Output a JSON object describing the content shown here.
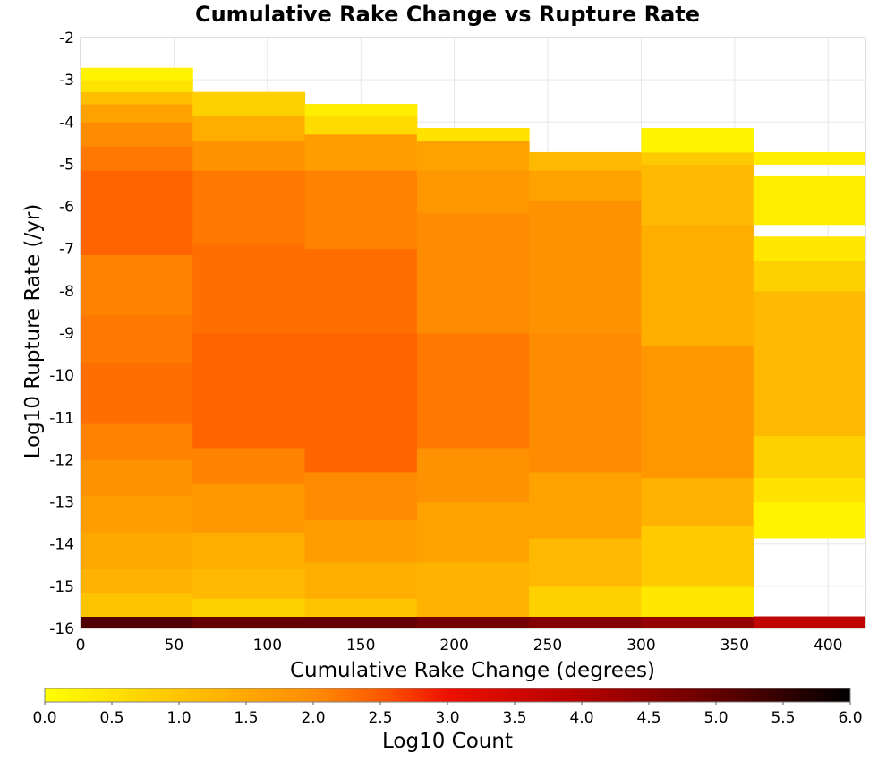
{
  "chart_data": {
    "type": "heatmap",
    "title": "Cumulative Rake Change vs Rupture Rate",
    "xlabel": "Cumulative Rake Change (degrees)",
    "ylabel": "Log10 Rupture Rate (/yr)",
    "xlim": [
      0,
      420
    ],
    "ylim": [
      -16,
      -2
    ],
    "xticks": [
      0,
      50,
      100,
      150,
      200,
      250,
      300,
      350,
      400
    ],
    "yticks": [
      -2,
      -3,
      -4,
      -5,
      -6,
      -7,
      -8,
      -9,
      -10,
      -11,
      -12,
      -13,
      -14,
      -15,
      -16
    ],
    "x_bins": [
      0,
      60,
      120,
      180,
      240,
      300,
      360,
      420
    ],
    "y_bin_width": 0.286,
    "grid": true,
    "colorbar": {
      "label": "Log10 Count",
      "min": 0.0,
      "max": 6.0,
      "ticks": [
        "0.0",
        "0.5",
        "1.0",
        "1.5",
        "2.0",
        "2.5",
        "3.0",
        "3.5",
        "4.0",
        "4.5",
        "5.0",
        "5.5",
        "6.0"
      ],
      "stops": [
        {
          "v": 0.0,
          "color": "#ffff00"
        },
        {
          "v": 1.0,
          "color": "#ffc400"
        },
        {
          "v": 2.0,
          "color": "#ff8c00"
        },
        {
          "v": 2.5,
          "color": "#ff5a00"
        },
        {
          "v": 3.0,
          "color": "#ee1000"
        },
        {
          "v": 4.0,
          "color": "#b40000"
        },
        {
          "v": 5.0,
          "color": "#640000"
        },
        {
          "v": 6.0,
          "color": "#000000"
        }
      ]
    },
    "columns": [
      {
        "x0": 0,
        "x1": 60,
        "cells": [
          {
            "y": -15.857,
            "v": 5.2
          },
          {
            "y0": -15.714,
            "y1": -15.143,
            "v": 1.0
          },
          {
            "y0": -15.143,
            "y1": -14.571,
            "v": 1.3
          },
          {
            "y0": -14.571,
            "y1": -13.714,
            "v": 1.5
          },
          {
            "y0": -13.714,
            "y1": -12.857,
            "v": 1.7
          },
          {
            "y0": -12.857,
            "y1": -12.0,
            "v": 1.9
          },
          {
            "y0": -12.0,
            "y1": -11.143,
            "v": 2.1
          },
          {
            "y0": -11.143,
            "y1": -9.714,
            "v": 2.3
          },
          {
            "y0": -9.714,
            "y1": -8.571,
            "v": 2.2
          },
          {
            "y0": -8.571,
            "y1": -7.143,
            "v": 2.1
          },
          {
            "y0": -7.143,
            "y1": -5.143,
            "v": 2.4
          },
          {
            "y0": -5.143,
            "y1": -4.571,
            "v": 2.2
          },
          {
            "y0": -4.571,
            "y1": -4.0,
            "v": 2.0
          },
          {
            "y0": -4.0,
            "y1": -3.571,
            "v": 1.6
          },
          {
            "y0": -3.571,
            "y1": -3.286,
            "v": 1.1
          },
          {
            "y0": -3.286,
            "y1": -3.0,
            "v": 0.5
          },
          {
            "y0": -3.0,
            "y1": -2.714,
            "v": 0.2
          }
        ]
      },
      {
        "x0": 60,
        "x1": 120,
        "cells": [
          {
            "y": -15.857,
            "v": 5.0
          },
          {
            "y0": -15.714,
            "y1": -15.286,
            "v": 0.8
          },
          {
            "y0": -15.286,
            "y1": -14.571,
            "v": 1.2
          },
          {
            "y0": -14.571,
            "y1": -13.714,
            "v": 1.4
          },
          {
            "y0": -13.714,
            "y1": -12.571,
            "v": 1.8
          },
          {
            "y0": -12.571,
            "y1": -11.714,
            "v": 2.1
          },
          {
            "y0": -11.714,
            "y1": -9.0,
            "v": 2.4
          },
          {
            "y0": -9.0,
            "y1": -6.857,
            "v": 2.3
          },
          {
            "y0": -6.857,
            "y1": -5.143,
            "v": 2.2
          },
          {
            "y0": -5.143,
            "y1": -4.429,
            "v": 1.9
          },
          {
            "y0": -4.429,
            "y1": -3.857,
            "v": 1.4
          },
          {
            "y0": -3.857,
            "y1": -3.286,
            "v": 0.8
          }
        ]
      },
      {
        "x0": 120,
        "x1": 180,
        "cells": [
          {
            "y": -15.857,
            "v": 5.0
          },
          {
            "y0": -15.714,
            "y1": -15.286,
            "v": 1.0
          },
          {
            "y0": -15.286,
            "y1": -14.429,
            "v": 1.4
          },
          {
            "y0": -14.429,
            "y1": -13.429,
            "v": 1.7
          },
          {
            "y0": -13.429,
            "y1": -12.286,
            "v": 2.0
          },
          {
            "y0": -12.286,
            "y1": -9.0,
            "v": 2.4
          },
          {
            "y0": -9.0,
            "y1": -7.0,
            "v": 2.3
          },
          {
            "y0": -7.0,
            "y1": -5.143,
            "v": 2.1
          },
          {
            "y0": -5.143,
            "y1": -4.286,
            "v": 1.7
          },
          {
            "y0": -4.286,
            "y1": -3.857,
            "v": 0.6
          },
          {
            "y0": -3.857,
            "y1": -3.571,
            "v": 0.3
          }
        ]
      },
      {
        "x0": 180,
        "x1": 240,
        "cells": [
          {
            "y": -15.857,
            "v": 4.8
          },
          {
            "y0": -15.714,
            "y1": -14.429,
            "v": 1.3
          },
          {
            "y0": -14.429,
            "y1": -13.0,
            "v": 1.6
          },
          {
            "y0": -13.0,
            "y1": -11.714,
            "v": 1.9
          },
          {
            "y0": -11.714,
            "y1": -9.0,
            "v": 2.2
          },
          {
            "y0": -9.0,
            "y1": -6.143,
            "v": 2.0
          },
          {
            "y0": -6.143,
            "y1": -5.143,
            "v": 1.8
          },
          {
            "y0": -5.143,
            "y1": -4.429,
            "v": 1.6
          },
          {
            "y0": -4.429,
            "y1": -4.143,
            "v": 0.5
          }
        ]
      },
      {
        "x0": 240,
        "x1": 300,
        "cells": [
          {
            "y": -15.857,
            "v": 4.6
          },
          {
            "y0": -15.714,
            "y1": -15.0,
            "v": 0.8
          },
          {
            "y0": -15.0,
            "y1": -13.857,
            "v": 1.2
          },
          {
            "y0": -13.857,
            "y1": -12.286,
            "v": 1.6
          },
          {
            "y0": -12.286,
            "y1": -9.0,
            "v": 2.0
          },
          {
            "y0": -9.0,
            "y1": -5.857,
            "v": 1.9
          },
          {
            "y0": -5.857,
            "y1": -5.143,
            "v": 1.6
          },
          {
            "y0": -5.143,
            "y1": -4.714,
            "v": 1.2
          }
        ]
      },
      {
        "x0": 300,
        "x1": 360,
        "cells": [
          {
            "y": -15.857,
            "v": 4.4
          },
          {
            "y0": -15.714,
            "y1": -15.0,
            "v": 0.4
          },
          {
            "y0": -15.0,
            "y1": -13.571,
            "v": 0.9
          },
          {
            "y0": -13.571,
            "y1": -12.429,
            "v": 1.3
          },
          {
            "y0": -12.429,
            "y1": -9.286,
            "v": 1.8
          },
          {
            "y0": -9.286,
            "y1": -6.429,
            "v": 1.4
          },
          {
            "y0": -6.429,
            "y1": -5.0,
            "v": 1.2
          },
          {
            "y0": -5.0,
            "y1": -4.714,
            "v": 0.9
          },
          {
            "y0": -4.714,
            "y1": -4.143,
            "v": 0.2
          }
        ]
      },
      {
        "x0": 360,
        "x1": 420,
        "cells": [
          {
            "y": -15.857,
            "v": 3.8
          },
          {
            "y0": -13.857,
            "y1": -13.0,
            "v": 0.2
          },
          {
            "y0": -13.0,
            "y1": -12.429,
            "v": 0.5
          },
          {
            "y0": -12.429,
            "y1": -11.429,
            "v": 0.8
          },
          {
            "y0": -11.429,
            "y1": -8.0,
            "v": 1.2
          },
          {
            "y0": -8.0,
            "y1": -7.286,
            "v": 0.8
          },
          {
            "y0": -7.286,
            "y1": -6.714,
            "v": 0.4
          },
          {
            "y0": -6.429,
            "y1": -5.286,
            "v": 0.3
          },
          {
            "y0": -5.0,
            "y1": -4.714,
            "v": 0.3
          }
        ]
      }
    ]
  }
}
